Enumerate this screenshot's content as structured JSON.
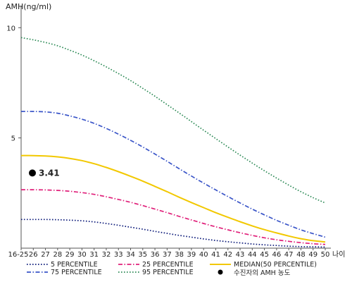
{
  "chart_data": {
    "type": "line",
    "ylabel": "AMH(ng/ml)",
    "xlabel": "나이",
    "x": [
      "16-25",
      "26",
      "27",
      "28",
      "29",
      "30",
      "31",
      "32",
      "33",
      "34",
      "35",
      "36",
      "37",
      "38",
      "39",
      "40",
      "41",
      "42",
      "43",
      "44",
      "45",
      "46",
      "47",
      "48",
      "49",
      "50"
    ],
    "yticks": [
      5,
      10
    ],
    "ylim": [
      0,
      11
    ],
    "series": [
      {
        "name": "5 PERCENTILE",
        "color": "#0d1b7a",
        "dash": "dotted",
        "values": [
          1.3,
          1.3,
          1.3,
          1.29,
          1.27,
          1.24,
          1.19,
          1.12,
          1.04,
          0.95,
          0.86,
          0.76,
          0.67,
          0.58,
          0.5,
          0.42,
          0.35,
          0.29,
          0.24,
          0.19,
          0.15,
          0.12,
          0.09,
          0.07,
          0.06,
          0.05
        ]
      },
      {
        "name": "25 PERCENTILE",
        "color": "#e0207a",
        "dash": "dashdot",
        "values": [
          2.65,
          2.65,
          2.64,
          2.62,
          2.58,
          2.52,
          2.44,
          2.33,
          2.21,
          2.08,
          1.93,
          1.77,
          1.61,
          1.44,
          1.28,
          1.12,
          0.97,
          0.83,
          0.7,
          0.58,
          0.47,
          0.38,
          0.31,
          0.25,
          0.2,
          0.17
        ]
      },
      {
        "name": "MEDIAN(50 PERCENTILE)",
        "color": "#f2c800",
        "dash": "solid",
        "values": [
          4.2,
          4.2,
          4.18,
          4.14,
          4.07,
          3.97,
          3.83,
          3.66,
          3.47,
          3.26,
          3.04,
          2.8,
          2.56,
          2.31,
          2.07,
          1.84,
          1.61,
          1.4,
          1.2,
          1.01,
          0.84,
          0.69,
          0.55,
          0.43,
          0.34,
          0.28
        ]
      },
      {
        "name": "75 PERCENTILE",
        "color": "#3a55c8",
        "dash": "dashdot",
        "values": [
          6.2,
          6.2,
          6.18,
          6.12,
          6.0,
          5.85,
          5.66,
          5.43,
          5.17,
          4.89,
          4.59,
          4.27,
          3.94,
          3.6,
          3.27,
          2.95,
          2.64,
          2.34,
          2.05,
          1.77,
          1.51,
          1.26,
          1.04,
          0.83,
          0.66,
          0.5
        ]
      },
      {
        "name": "95 PERCENTILE",
        "color": "#2e8b57",
        "dash": "dotted",
        "values": [
          9.55,
          9.45,
          9.33,
          9.18,
          8.98,
          8.76,
          8.5,
          8.22,
          7.92,
          7.6,
          7.25,
          6.89,
          6.51,
          6.13,
          5.74,
          5.35,
          4.97,
          4.59,
          4.22,
          3.86,
          3.51,
          3.18,
          2.86,
          2.56,
          2.29,
          2.05
        ]
      }
    ],
    "point": {
      "name": "수진자의 AMH 농도",
      "x": "16-25",
      "y": 3.41,
      "label": "3.41",
      "color": "#000000"
    },
    "legend_position": "bottom",
    "grid": false
  }
}
